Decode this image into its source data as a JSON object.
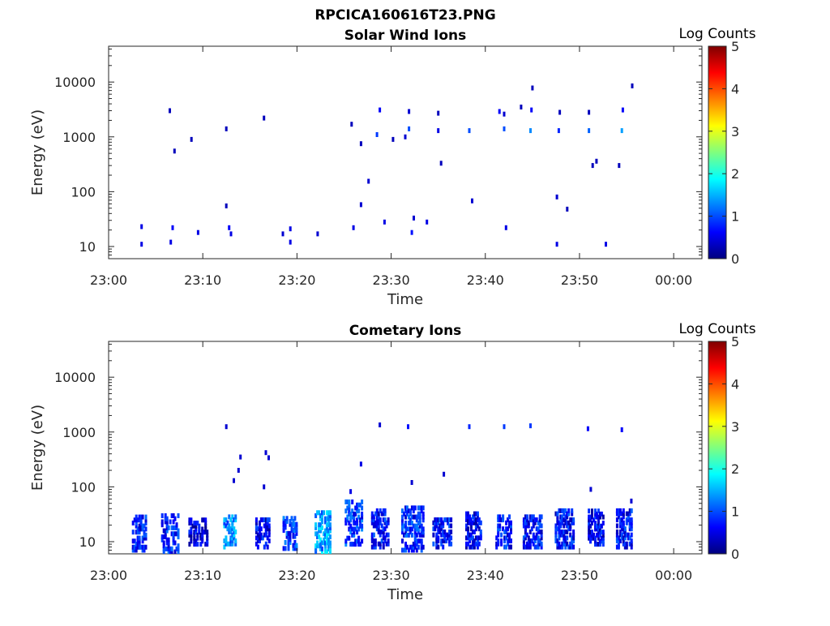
{
  "figure": {
    "title": "RPCICA160616T23.PNG"
  },
  "colormap": {
    "name": "jet",
    "stops": [
      "#00007f",
      "#0000ff",
      "#007fff",
      "#00ffff",
      "#7fff7f",
      "#ffff00",
      "#ff7f00",
      "#ff0000",
      "#7f0000"
    ]
  },
  "chart_data": [
    {
      "type": "heatmap",
      "title": "Solar Wind Ions",
      "xlabel": "Time",
      "ylabel": "Energy (eV)",
      "x_unit": "minutes after 23:00",
      "xlim": [
        0,
        63
      ],
      "ylim": [
        6,
        45000
      ],
      "yscale": "log",
      "xticks": [
        0,
        10,
        20,
        30,
        40,
        50,
        60
      ],
      "xtick_labels": [
        "23:00",
        "23:10",
        "23:20",
        "23:30",
        "23:40",
        "23:50",
        "00:00"
      ],
      "yticks": [
        10,
        100,
        1000,
        10000
      ],
      "ytick_labels": [
        "10",
        "100",
        "1000",
        "10000"
      ],
      "colorbar": {
        "label": "Log Counts",
        "range": [
          0,
          5
        ],
        "ticks": [
          "0",
          "1",
          "2",
          "3",
          "4",
          "5"
        ]
      },
      "grid": false,
      "points": [
        {
          "t": 3.5,
          "e": 23,
          "c": 0.5
        },
        {
          "t": 3.5,
          "e": 11,
          "c": 0.5
        },
        {
          "t": 6.5,
          "e": 3000,
          "c": 0.3
        },
        {
          "t": 6.8,
          "e": 22,
          "c": 0.6
        },
        {
          "t": 6.6,
          "e": 12,
          "c": 0.5
        },
        {
          "t": 7.0,
          "e": 550,
          "c": 0.3
        },
        {
          "t": 8.8,
          "e": 900,
          "c": 0.3
        },
        {
          "t": 9.5,
          "e": 18,
          "c": 0.5
        },
        {
          "t": 12.5,
          "e": 1400,
          "c": 0.3
        },
        {
          "t": 12.5,
          "e": 55,
          "c": 0.3
        },
        {
          "t": 12.8,
          "e": 22,
          "c": 0.6
        },
        {
          "t": 13.0,
          "e": 17,
          "c": 0.5
        },
        {
          "t": 16.5,
          "e": 2200,
          "c": 0.3
        },
        {
          "t": 18.5,
          "e": 17,
          "c": 0.4
        },
        {
          "t": 19.3,
          "e": 21,
          "c": 0.5
        },
        {
          "t": 19.3,
          "e": 12,
          "c": 0.5
        },
        {
          "t": 22.2,
          "e": 17,
          "c": 0.4
        },
        {
          "t": 25.8,
          "e": 1700,
          "c": 0.3
        },
        {
          "t": 26.0,
          "e": 22,
          "c": 0.5
        },
        {
          "t": 26.8,
          "e": 750,
          "c": 0.3
        },
        {
          "t": 26.8,
          "e": 58,
          "c": 0.4
        },
        {
          "t": 27.6,
          "e": 155,
          "c": 0.4
        },
        {
          "t": 28.5,
          "e": 1100,
          "c": 0.9
        },
        {
          "t": 28.8,
          "e": 3100,
          "c": 0.6
        },
        {
          "t": 29.3,
          "e": 28,
          "c": 0.5
        },
        {
          "t": 30.2,
          "e": 900,
          "c": 0.3
        },
        {
          "t": 31.5,
          "e": 1000,
          "c": 0.4
        },
        {
          "t": 31.9,
          "e": 1400,
          "c": 1.0
        },
        {
          "t": 31.9,
          "e": 2900,
          "c": 0.4
        },
        {
          "t": 32.2,
          "e": 18,
          "c": 0.7
        },
        {
          "t": 32.4,
          "e": 33,
          "c": 0.4
        },
        {
          "t": 33.8,
          "e": 28,
          "c": 0.5
        },
        {
          "t": 35.0,
          "e": 1300,
          "c": 0.5
        },
        {
          "t": 35.0,
          "e": 2700,
          "c": 0.3
        },
        {
          "t": 35.3,
          "e": 330,
          "c": 0.3
        },
        {
          "t": 38.3,
          "e": 1300,
          "c": 1.0
        },
        {
          "t": 38.6,
          "e": 68,
          "c": 0.4
        },
        {
          "t": 41.5,
          "e": 2900,
          "c": 0.6
        },
        {
          "t": 42.0,
          "e": 1400,
          "c": 1.0
        },
        {
          "t": 42.2,
          "e": 22,
          "c": 0.5
        },
        {
          "t": 42.0,
          "e": 2600,
          "c": 0.4
        },
        {
          "t": 43.8,
          "e": 3500,
          "c": 0.3
        },
        {
          "t": 44.8,
          "e": 1300,
          "c": 1.3
        },
        {
          "t": 44.9,
          "e": 3100,
          "c": 0.6
        },
        {
          "t": 45.0,
          "e": 7800,
          "c": 0.3
        },
        {
          "t": 47.8,
          "e": 1300,
          "c": 0.8
        },
        {
          "t": 47.9,
          "e": 2800,
          "c": 0.3
        },
        {
          "t": 47.6,
          "e": 80,
          "c": 0.4
        },
        {
          "t": 47.6,
          "e": 11,
          "c": 0.5
        },
        {
          "t": 48.7,
          "e": 48,
          "c": 0.3
        },
        {
          "t": 51.0,
          "e": 1300,
          "c": 1.1
        },
        {
          "t": 51.0,
          "e": 2800,
          "c": 0.3
        },
        {
          "t": 51.4,
          "e": 300,
          "c": 0.3
        },
        {
          "t": 51.8,
          "e": 360,
          "c": 0.3
        },
        {
          "t": 52.8,
          "e": 11,
          "c": 0.5
        },
        {
          "t": 54.2,
          "e": 300,
          "c": 0.3
        },
        {
          "t": 54.5,
          "e": 1300,
          "c": 1.4
        },
        {
          "t": 54.6,
          "e": 3100,
          "c": 0.6
        },
        {
          "t": 55.6,
          "e": 8500,
          "c": 0.3
        }
      ]
    },
    {
      "type": "heatmap",
      "title": "Cometary Ions",
      "xlabel": "Time",
      "ylabel": "Energy (eV)",
      "x_unit": "minutes after 23:00",
      "xlim": [
        0,
        63
      ],
      "ylim": [
        6,
        45000
      ],
      "yscale": "log",
      "xticks": [
        0,
        10,
        20,
        30,
        40,
        50,
        60
      ],
      "xtick_labels": [
        "23:00",
        "23:10",
        "23:20",
        "23:30",
        "23:40",
        "23:50",
        "00:00"
      ],
      "yticks": [
        10,
        100,
        1000,
        10000
      ],
      "ytick_labels": [
        "10",
        "100",
        "1000",
        "10000"
      ],
      "colorbar": {
        "label": "Log Counts",
        "range": [
          0,
          5
        ],
        "ticks": [
          "0",
          "1",
          "2",
          "3",
          "4",
          "5"
        ]
      },
      "grid": false,
      "points": [
        {
          "t": 12.5,
          "e": 1250,
          "c": 0.4
        },
        {
          "t": 13.3,
          "e": 130,
          "c": 0.4
        },
        {
          "t": 13.8,
          "e": 200,
          "c": 0.4
        },
        {
          "t": 14.0,
          "e": 350,
          "c": 0.4
        },
        {
          "t": 16.7,
          "e": 420,
          "c": 0.4
        },
        {
          "t": 17.0,
          "e": 340,
          "c": 0.4
        },
        {
          "t": 16.5,
          "e": 100,
          "c": 0.4
        },
        {
          "t": 26.8,
          "e": 260,
          "c": 0.5
        },
        {
          "t": 25.7,
          "e": 82,
          "c": 0.5
        },
        {
          "t": 28.8,
          "e": 1350,
          "c": 0.4
        },
        {
          "t": 31.8,
          "e": 1250,
          "c": 0.7
        },
        {
          "t": 32.2,
          "e": 120,
          "c": 0.4
        },
        {
          "t": 35.6,
          "e": 170,
          "c": 0.4
        },
        {
          "t": 38.3,
          "e": 1250,
          "c": 0.8
        },
        {
          "t": 42.0,
          "e": 1250,
          "c": 0.9
        },
        {
          "t": 44.8,
          "e": 1300,
          "c": 0.9
        },
        {
          "t": 50.9,
          "e": 1150,
          "c": 0.6
        },
        {
          "t": 54.5,
          "e": 1100,
          "c": 0.6
        },
        {
          "t": 51.2,
          "e": 90,
          "c": 0.4
        },
        {
          "t": 55.5,
          "e": 55,
          "c": 0.4
        }
      ],
      "bursts": [
        {
          "t0": 2.6,
          "t1": 4.0,
          "emin": 7,
          "emax": 30,
          "c": 0.7
        },
        {
          "t0": 5.7,
          "t1": 7.5,
          "emin": 6.5,
          "emax": 30,
          "c": 0.8
        },
        {
          "t0": 8.6,
          "t1": 10.5,
          "emin": 9,
          "emax": 28,
          "c": 0.5
        },
        {
          "t0": 12.3,
          "t1": 13.6,
          "emin": 8,
          "emax": 30,
          "c": 1.3
        },
        {
          "t0": 15.7,
          "t1": 17.2,
          "emin": 8,
          "emax": 28,
          "c": 0.6
        },
        {
          "t0": 18.6,
          "t1": 20.0,
          "emin": 7.5,
          "emax": 28,
          "c": 0.9
        },
        {
          "t0": 22.0,
          "t1": 23.7,
          "emin": 6.5,
          "emax": 35,
          "c": 1.4
        },
        {
          "t0": 25.2,
          "t1": 27.0,
          "emin": 9,
          "emax": 55,
          "c": 0.9
        },
        {
          "t0": 28.0,
          "t1": 29.8,
          "emin": 8,
          "emax": 40,
          "c": 0.7
        },
        {
          "t0": 31.2,
          "t1": 33.5,
          "emin": 7,
          "emax": 45,
          "c": 0.8
        },
        {
          "t0": 34.5,
          "t1": 36.5,
          "emin": 8,
          "emax": 28,
          "c": 0.7
        },
        {
          "t0": 38.0,
          "t1": 39.7,
          "emin": 8,
          "emax": 35,
          "c": 0.6
        },
        {
          "t0": 41.2,
          "t1": 42.8,
          "emin": 8,
          "emax": 30,
          "c": 0.7
        },
        {
          "t0": 44.1,
          "t1": 46.0,
          "emin": 8,
          "emax": 30,
          "c": 0.7
        },
        {
          "t0": 47.5,
          "t1": 49.5,
          "emin": 8,
          "emax": 40,
          "c": 0.7
        },
        {
          "t0": 51.0,
          "t1": 52.6,
          "emin": 9,
          "emax": 40,
          "c": 0.6
        },
        {
          "t0": 54.0,
          "t1": 55.6,
          "emin": 8,
          "emax": 40,
          "c": 0.7
        }
      ]
    }
  ]
}
